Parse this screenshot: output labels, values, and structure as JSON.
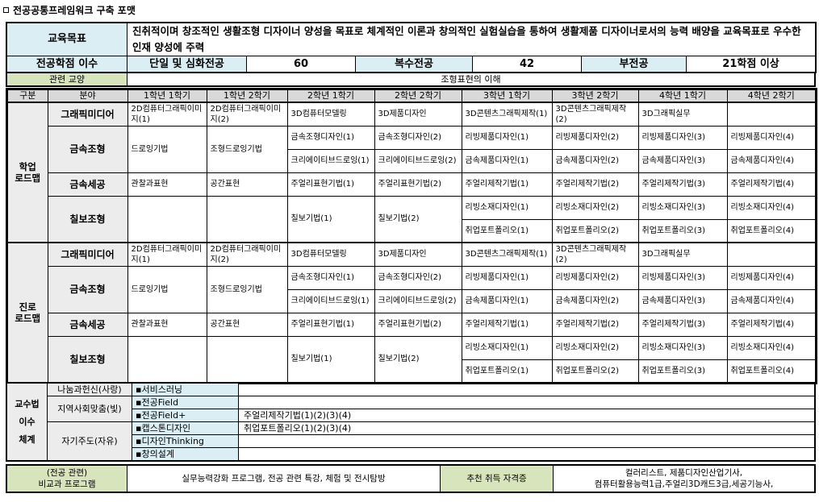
{
  "title": "전공공통프레임워크 구축 포맷",
  "goal": {
    "label": "교육목표",
    "text": "진취적이며 창조적인 생활조형 디자이너 양성을 목표로 체계적인 이론과 창의적인 실험실습을 통하여 생활제품 디자이너로서의 능력 배양을 교육목표로 우수한 인재 양성에 주력"
  },
  "credits": {
    "label": "전공학점 이수",
    "single_label": "단일 및 심화전공",
    "single_value": "60",
    "double_label": "복수전공",
    "double_value": "42",
    "minor_label": "부전공",
    "minor_value": "21학점 이상"
  },
  "related": {
    "label": "관련 교양",
    "value": "조형표현의 이해"
  },
  "roadmap_header": [
    "구분",
    "분야",
    "1학년 1학기",
    "1학년 2학기",
    "2학년 1학기",
    "2학년 2학기",
    "3학년 1학기",
    "3학년 2학기",
    "4학년 1학기",
    "4학년 2학기"
  ],
  "roadmaps": [
    {
      "label": "학업\n로드맵",
      "fields": [
        {
          "name": "그래픽미디어",
          "cells": [
            "2D컴퓨터그래픽이미지(1)",
            "2D컴퓨터그래픽이미지(2)",
            "3D컴퓨터모델링",
            "3D제품디자인",
            "3D콘텐츠그래픽제작(1)",
            "3D콘텐츠그래픽제작(2)",
            "3D그래픽실무",
            ""
          ]
        },
        {
          "name": "금속조형",
          "cells": [
            "드로잉기법",
            "조형드로잉기법",
            [
              "금속조형디자인(1)",
              "크리에이티브드로잉(1)"
            ],
            [
              "금속조형디자인(2)",
              "크리에이티브드로잉(2)"
            ],
            [
              "리빙제품디자인(1)",
              "금속제품디자인(1)"
            ],
            [
              "리빙제품디자인(2)",
              "금속제품디자인(2)"
            ],
            [
              "리빙제품디자인(3)",
              "금속제품디자인(3)"
            ],
            [
              "리빙제품디자인(4)",
              "금속제품디자인(4)"
            ]
          ]
        },
        {
          "name": "금속세공",
          "cells": [
            "관찰과표현",
            "공간표현",
            "주얼리표현기법(1)",
            "주얼리표현기법(2)",
            "주얼리제작기법(1)",
            "주얼리제작기법(2)",
            "주얼리제작기법(3)",
            "주얼리제작기법(4)"
          ]
        },
        {
          "name": "칠보조형",
          "cells": [
            "",
            "",
            "칠보기법(1)",
            "칠보기법(2)",
            [
              "리빙소재디자인(1)",
              "취업포트폴리오(1)"
            ],
            [
              "리빙소재디자인(2)",
              "취업포트폴리오(2)"
            ],
            [
              "리빙소재디자인(3)",
              "취업포트폴리오(3)"
            ],
            [
              "리빙소재디자인(4)",
              "취업포트폴리오(4)"
            ]
          ]
        }
      ]
    },
    {
      "label": "진로\n로드맵",
      "fields": [
        {
          "name": "그래픽미디어",
          "cells": [
            "2D컴퓨터그래픽이미지(1)",
            "2D컴퓨터그래픽이미지(2)",
            "3D컴퓨터모델링",
            "3D제품디자인",
            "3D콘텐츠그래픽제작(1)",
            "3D콘텐츠그래픽제작(2)",
            "3D그래픽실무",
            ""
          ]
        },
        {
          "name": "금속조형",
          "cells": [
            "드로잉기법",
            "조형드로잉기법",
            [
              "금속조형디자인(1)",
              "크리에이티브드로잉(1)"
            ],
            [
              "금속조형디자인(2)",
              "크리에이티브드로잉(2)"
            ],
            [
              "리빙제품디자인(1)",
              "금속제품디자인(1)"
            ],
            [
              "리빙제품디자인(2)",
              "금속제품디자인(2)"
            ],
            [
              "리빙제품디자인(3)",
              "금속제품디자인(3)"
            ],
            [
              "리빙제품디자인(4)",
              "금속제품디자인(4)"
            ]
          ]
        },
        {
          "name": "금속세공",
          "cells": [
            "관찰과표현",
            "공간표현",
            "주얼리표현기법(1)",
            "주얼리표현기법(2)",
            "주얼리제작기법(1)",
            "주얼리제작기법(2)",
            "주얼리제작기법(3)",
            "주얼리제작기법(4)"
          ]
        },
        {
          "name": "칠보조형",
          "cells": [
            "",
            "",
            "칠보기법(1)",
            "칠보기법(2)",
            [
              "리빙소재디자인(1)",
              "취업포트폴리오(1)"
            ],
            [
              "리빙소재디자인(2)",
              "취업포트폴리오(2)"
            ],
            [
              "리빙소재디자인(3)",
              "취업포트폴리오(3)"
            ],
            [
              "리빙소재디자인(4)",
              "취업포트폴리오(4)"
            ]
          ]
        }
      ]
    }
  ],
  "teaching": {
    "label": "교수법\n이수\n체계",
    "categories": [
      "나눔과헌신(사랑)",
      "지역사회맞춤(빛)",
      "자기주도(자유)"
    ],
    "items": [
      {
        "name": "▪서비스러닝",
        "value": ""
      },
      {
        "name": "▪전공Field",
        "value": ""
      },
      {
        "name": "▪전공Field+",
        "value": "주얼리제작기법(1)(2)(3)(4)"
      },
      {
        "name": "▪캡스톤디자인",
        "value": "취업포트폴리오(1)(2)(3)(4)"
      },
      {
        "name": "▪디자인Thinking",
        "value": ""
      },
      {
        "name": "▪창의설계",
        "value": ""
      }
    ]
  },
  "extra": {
    "label_line1": "(전공 관련)",
    "label_line2": "비교과 프로그램",
    "programs": "실무능력강화 프로그램, 전공 관련 특강,  체험 및 전시탐방",
    "cert_label": "추천 취득 자격증",
    "certs_line1": "컬러리스트, 제품디자인산업기사,",
    "certs_line2": "컴퓨터활용능력1급,주얼리3D캐드3급,세공기능사,"
  }
}
